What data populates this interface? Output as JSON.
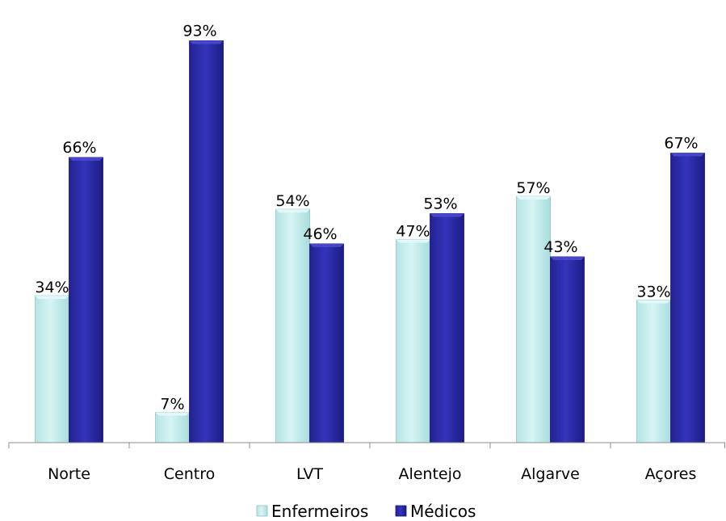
{
  "chart_data": {
    "type": "bar",
    "categories": [
      "Norte",
      "Centro",
      "LVT",
      "Alentejo",
      "Algarve",
      "Açores"
    ],
    "series": [
      {
        "name": "Enfermeiros",
        "values": [
          34,
          7,
          54,
          47,
          57,
          33
        ],
        "labels": [
          "34%",
          "7%",
          "54%",
          "47%",
          "57%",
          "33%"
        ],
        "color": "#c8efef"
      },
      {
        "name": "Médicos",
        "values": [
          66,
          93,
          46,
          53,
          43,
          67
        ],
        "labels": [
          "66%",
          "93%",
          "46%",
          "53%",
          "43%",
          "67%"
        ],
        "color": "#2b2ba8"
      }
    ],
    "value_unit": "%",
    "ylim": [
      0,
      100
    ],
    "grid": false,
    "legend_position": "bottom"
  }
}
